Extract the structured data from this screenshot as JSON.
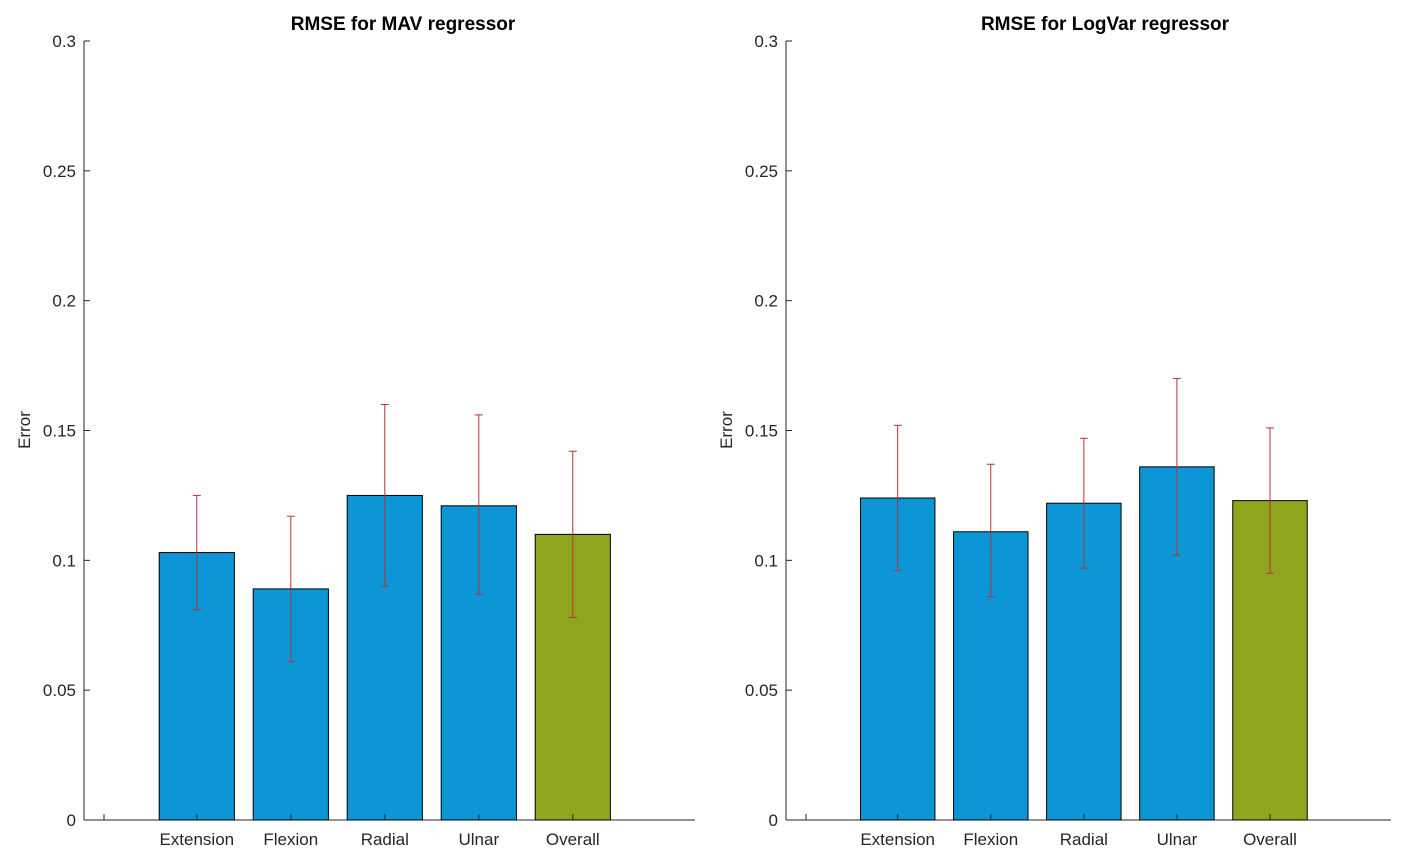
{
  "chart_data": [
    {
      "type": "bar",
      "title": "RMSE for MAV regressor",
      "xlabel": "",
      "ylabel": "Error",
      "ylim": [
        0,
        0.3
      ],
      "yticks": [
        "0",
        "0.05",
        "0.1",
        "0.15",
        "0.2",
        "0.25",
        "0.3"
      ],
      "categories": [
        "Extension",
        "Flexion",
        "Radial",
        "Ulnar",
        "Overall"
      ],
      "values": [
        0.103,
        0.089,
        0.125,
        0.121,
        0.11
      ],
      "err_low": [
        0.081,
        0.061,
        0.09,
        0.087,
        0.078
      ],
      "err_high": [
        0.125,
        0.117,
        0.16,
        0.156,
        0.142
      ],
      "colors": [
        "#0c96d5",
        "#0c96d5",
        "#0c96d5",
        "#0c96d5",
        "#8fa51d"
      ],
      "error_color": "#b5323a",
      "grid": false
    },
    {
      "type": "bar",
      "title": "RMSE for LogVar regressor",
      "xlabel": "",
      "ylabel": "Error",
      "ylim": [
        0,
        0.3
      ],
      "yticks": [
        "0",
        "0.05",
        "0.1",
        "0.15",
        "0.2",
        "0.25",
        "0.3"
      ],
      "categories": [
        "Extension",
        "Flexion",
        "Radial",
        "Ulnar",
        "Overall"
      ],
      "values": [
        0.124,
        0.111,
        0.122,
        0.136,
        0.123
      ],
      "err_low": [
        0.096,
        0.086,
        0.097,
        0.102,
        0.095
      ],
      "err_high": [
        0.152,
        0.137,
        0.147,
        0.17,
        0.151
      ],
      "colors": [
        "#0c96d5",
        "#0c96d5",
        "#0c96d5",
        "#0c96d5",
        "#8fa51d"
      ],
      "error_color": "#b5323a",
      "grid": false
    }
  ]
}
